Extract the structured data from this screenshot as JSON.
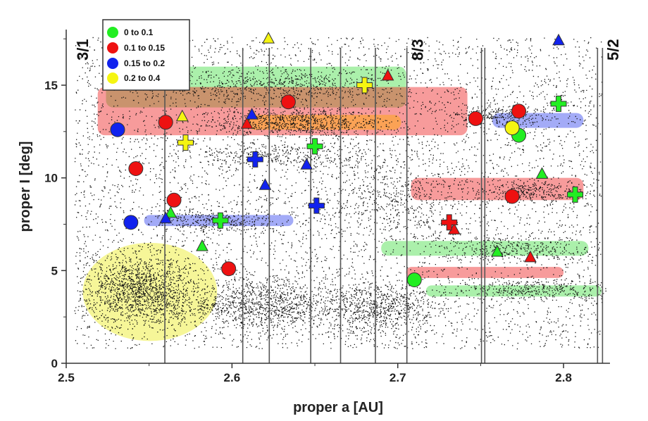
{
  "chart_data": {
    "type": "scatter",
    "xlabel": "proper a [AU]",
    "ylabel": "proper I [deg]",
    "xlim": [
      2.5,
      2.828
    ],
    "ylim": [
      0,
      18
    ],
    "x_ticks": [
      2.5,
      2.6,
      2.7,
      2.8
    ],
    "x_tick_labels": [
      "2.5",
      "2.6",
      "2.7",
      "2.8"
    ],
    "y_ticks": [
      0,
      5,
      10,
      15
    ],
    "y_tick_labels": [
      "0",
      "5",
      "10",
      "15"
    ],
    "legend": {
      "placement": "top-left",
      "entries": [
        {
          "label": "0 to 0.1",
          "color": "#22ee22"
        },
        {
          "label": "0.1 to 0.15",
          "color": "#ee1111"
        },
        {
          "label": "0.15 to 0.2",
          "color": "#1122ee"
        },
        {
          "label": "0.2 to 0.4",
          "color": "#f5f511"
        }
      ]
    },
    "resonances": [
      {
        "label": "3/1",
        "a": 2.503
      },
      {
        "label": "8/3",
        "a": 2.705
      },
      {
        "label": "5/2",
        "a": 2.823
      }
    ],
    "vertical_lines": [
      2.5595,
      2.6065,
      2.6225,
      2.6475,
      2.6655,
      2.6865,
      2.7055,
      2.7505,
      2.7525,
      2.8205,
      2.8235
    ],
    "highlight_regions": [
      {
        "shape": "rect",
        "x": [
          2.524,
          2.705
        ],
        "y": [
          13.8,
          16.0
        ],
        "color": "#44dd44"
      },
      {
        "shape": "rect",
        "x": [
          2.519,
          2.742
        ],
        "y": [
          12.3,
          14.9
        ],
        "color": "#ee2222"
      },
      {
        "shape": "rect",
        "x": [
          2.609,
          2.702
        ],
        "y": [
          12.6,
          13.4
        ],
        "color": "#ffaa00"
      },
      {
        "shape": "rect",
        "x": [
          2.757,
          2.812
        ],
        "y": [
          12.7,
          13.5
        ],
        "color": "#3344ee"
      },
      {
        "shape": "rect",
        "x": [
          2.547,
          2.637
        ],
        "y": [
          7.4,
          8.0
        ],
        "color": "#3344ee"
      },
      {
        "shape": "rect",
        "x": [
          2.708,
          2.812
        ],
        "y": [
          8.8,
          10.0
        ],
        "color": "#ee2222"
      },
      {
        "shape": "rect",
        "x": [
          2.69,
          2.815
        ],
        "y": [
          5.8,
          6.6
        ],
        "color": "#44dd44"
      },
      {
        "shape": "rect",
        "x": [
          2.705,
          2.8
        ],
        "y": [
          4.6,
          5.2
        ],
        "color": "#ee2222"
      },
      {
        "shape": "rect",
        "x": [
          2.717,
          2.823
        ],
        "y": [
          3.6,
          4.2
        ],
        "color": "#44dd44"
      },
      {
        "shape": "ellipse",
        "x": [
          2.51,
          2.591
        ],
        "y": [
          1.2,
          6.5
        ],
        "color": "#eeee44"
      }
    ],
    "series": [
      {
        "marker": "circle",
        "color": "#22ee22",
        "points": [
          [
            2.71,
            4.5
          ],
          [
            2.773,
            12.3
          ]
        ]
      },
      {
        "marker": "circle",
        "color": "#ee1111",
        "points": [
          [
            2.56,
            13.0
          ],
          [
            2.542,
            10.5
          ],
          [
            2.565,
            8.8
          ],
          [
            2.598,
            5.1
          ],
          [
            2.634,
            14.1
          ],
          [
            2.747,
            13.2
          ],
          [
            2.773,
            13.6
          ],
          [
            2.769,
            9.0
          ]
        ]
      },
      {
        "marker": "circle",
        "color": "#1122ee",
        "points": [
          [
            2.531,
            12.6
          ],
          [
            2.539,
            7.6
          ]
        ]
      },
      {
        "marker": "circle",
        "color": "#f5f511",
        "points": [
          [
            2.769,
            12.7
          ]
        ]
      },
      {
        "marker": "triangle",
        "color": "#22ee22",
        "points": [
          [
            2.563,
            8.1
          ],
          [
            2.582,
            6.3
          ],
          [
            2.76,
            6.0
          ],
          [
            2.787,
            10.2
          ]
        ]
      },
      {
        "marker": "triangle",
        "color": "#ee1111",
        "points": [
          [
            2.609,
            12.9
          ],
          [
            2.694,
            15.5
          ],
          [
            2.734,
            7.2
          ],
          [
            2.78,
            5.7
          ]
        ]
      },
      {
        "marker": "triangle",
        "color": "#1122ee",
        "points": [
          [
            2.56,
            7.8
          ],
          [
            2.612,
            13.4
          ],
          [
            2.62,
            9.6
          ],
          [
            2.645,
            10.7
          ],
          [
            2.797,
            17.4
          ]
        ]
      },
      {
        "marker": "triangle",
        "color": "#f5f511",
        "points": [
          [
            2.57,
            13.3
          ],
          [
            2.622,
            17.5
          ]
        ]
      },
      {
        "marker": "plus",
        "color": "#22ee22",
        "points": [
          [
            2.593,
            7.7
          ],
          [
            2.65,
            11.7
          ],
          [
            2.797,
            14.0
          ],
          [
            2.807,
            9.1
          ]
        ]
      },
      {
        "marker": "plus",
        "color": "#ee1111",
        "points": [
          [
            2.731,
            7.6
          ]
        ]
      },
      {
        "marker": "plus",
        "color": "#1122ee",
        "points": [
          [
            2.614,
            11.0
          ],
          [
            2.651,
            8.5
          ]
        ]
      },
      {
        "marker": "plus",
        "color": "#f5f511",
        "points": [
          [
            2.572,
            11.9
          ],
          [
            2.68,
            15.0
          ]
        ]
      }
    ]
  }
}
